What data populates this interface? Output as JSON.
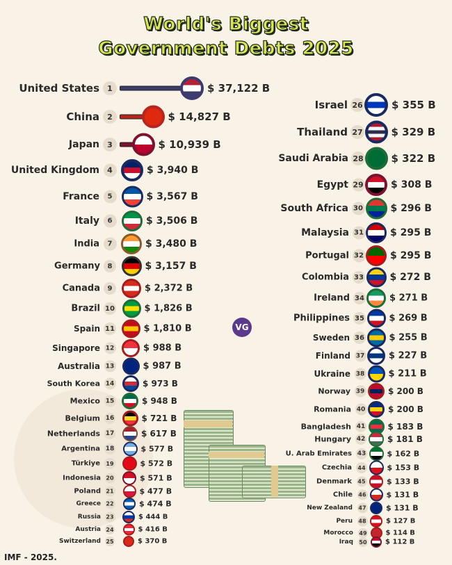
{
  "title_line1": "World's Biggest",
  "title_line2": "Government Debts 2025",
  "source": "IMF - 2025.",
  "logo": "VG",
  "chart_data": {
    "type": "ranked-list",
    "title": "World's Biggest Government Debts 2025",
    "unit": "$ B",
    "items": [
      {
        "rank": 1,
        "country": "United States",
        "value": 37122,
        "label": "$ 37,122 B",
        "colors": [
          "#b22234",
          "#ffffff",
          "#3c3b6e"
        ],
        "ring": "#3c3b6e"
      },
      {
        "rank": 2,
        "country": "China",
        "value": 14827,
        "label": "$ 14,827 B",
        "colors": [
          "#de2910",
          "#de2910"
        ],
        "ring": "#b5261c"
      },
      {
        "rank": 3,
        "country": "Japan",
        "value": 10939,
        "label": "$ 10,939 B",
        "colors": [
          "#ffffff",
          "#bc002d"
        ],
        "ring": "#7a1230"
      },
      {
        "rank": 4,
        "country": "United Kingdom",
        "value": 3940,
        "label": "$ 3,940 B",
        "colors": [
          "#012169",
          "#c8102e",
          "#ffffff"
        ],
        "ring": "#1b2a5e"
      },
      {
        "rank": 5,
        "country": "France",
        "value": 3567,
        "label": "$ 3,567 B",
        "colors": [
          "#0055a4",
          "#ffffff",
          "#ef4135"
        ],
        "ring": "#1b2a5e"
      },
      {
        "rank": 6,
        "country": "Italy",
        "value": 3506,
        "label": "$ 3,506 B",
        "colors": [
          "#009246",
          "#ffffff",
          "#ce2b37"
        ],
        "ring": "#1f6b3a"
      },
      {
        "rank": 7,
        "country": "India",
        "value": 3480,
        "label": "$ 3,480 B",
        "colors": [
          "#ff9933",
          "#ffffff",
          "#138808"
        ],
        "ring": "#8a5a2a"
      },
      {
        "rank": 8,
        "country": "Germany",
        "value": 3157,
        "label": "$ 3,157 B",
        "colors": [
          "#000000",
          "#dd0000",
          "#ffce00"
        ],
        "ring": "#333333"
      },
      {
        "rank": 9,
        "country": "Canada",
        "value": 2372,
        "label": "$ 2,372 B",
        "colors": [
          "#d52b1e",
          "#ffffff",
          "#d52b1e"
        ],
        "ring": "#a21e1e"
      },
      {
        "rank": 10,
        "country": "Brazil",
        "value": 1826,
        "label": "$ 1,826 B",
        "colors": [
          "#009c3b",
          "#ffdf00",
          "#009c3b"
        ],
        "ring": "#1f6b3a"
      },
      {
        "rank": 11,
        "country": "Spain",
        "value": 1810,
        "label": "$ 1,810 B",
        "colors": [
          "#c60b1e",
          "#ffc400",
          "#c60b1e"
        ],
        "ring": "#a21e1e"
      },
      {
        "rank": 12,
        "country": "Singapore",
        "value": 988,
        "label": "$ 988 B",
        "colors": [
          "#ef3340",
          "#ffffff"
        ],
        "ring": "#a21e1e"
      },
      {
        "rank": 13,
        "country": "Australia",
        "value": 987,
        "label": "$ 987 B",
        "colors": [
          "#00247d",
          "#00247d"
        ],
        "ring": "#1b2a5e"
      },
      {
        "rank": 14,
        "country": "South Korea",
        "value": 973,
        "label": "$ 973 B",
        "colors": [
          "#ffffff",
          "#cd2e3a",
          "#0047a0"
        ],
        "ring": "#1b2a5e"
      },
      {
        "rank": 15,
        "country": "Mexico",
        "value": 948,
        "label": "$ 948 B",
        "colors": [
          "#006847",
          "#ffffff",
          "#ce1126"
        ],
        "ring": "#1f6b3a"
      },
      {
        "rank": 16,
        "country": "Belgium",
        "value": 721,
        "label": "$ 721 B",
        "colors": [
          "#000000",
          "#fdda24",
          "#ef3340"
        ],
        "ring": "#a21e1e"
      },
      {
        "rank": 17,
        "country": "Netherlands",
        "value": 617,
        "label": "$ 617 B",
        "colors": [
          "#ae1c28",
          "#ffffff",
          "#21468b"
        ],
        "ring": "#7a4a3a"
      },
      {
        "rank": 18,
        "country": "Argentina",
        "value": 577,
        "label": "$ 577 B",
        "colors": [
          "#74acdf",
          "#ffffff",
          "#74acdf"
        ],
        "ring": "#1b2a5e"
      },
      {
        "rank": 19,
        "country": "Türkiye",
        "value": 572,
        "label": "$ 572 B",
        "colors": [
          "#e30a17",
          "#e30a17"
        ],
        "ring": "#a21e1e"
      },
      {
        "rank": 20,
        "country": "Indonesia",
        "value": 571,
        "label": "$ 571 B",
        "colors": [
          "#ce1126",
          "#ffffff"
        ],
        "ring": "#7a1230"
      },
      {
        "rank": 21,
        "country": "Poland",
        "value": 477,
        "label": "$ 477 B",
        "colors": [
          "#ffffff",
          "#dc143c"
        ],
        "ring": "#a21e1e"
      },
      {
        "rank": 22,
        "country": "Greece",
        "value": 474,
        "label": "$ 474 B",
        "colors": [
          "#0d5eaf",
          "#ffffff",
          "#0d5eaf"
        ],
        "ring": "#1b2a5e"
      },
      {
        "rank": 23,
        "country": "Russia",
        "value": 444,
        "label": "$ 444 B",
        "colors": [
          "#ffffff",
          "#0039a6",
          "#d52b1e"
        ],
        "ring": "#1b2a5e"
      },
      {
        "rank": 24,
        "country": "Austria",
        "value": 416,
        "label": "$ 416 B",
        "colors": [
          "#ed2939",
          "#ffffff",
          "#ed2939"
        ],
        "ring": "#a21e1e"
      },
      {
        "rank": 25,
        "country": "Switzerland",
        "value": 370,
        "label": "$ 370 B",
        "colors": [
          "#da291c",
          "#da291c"
        ],
        "ring": "#a21e1e"
      },
      {
        "rank": 26,
        "country": "Israel",
        "value": 355,
        "label": "$ 355 B",
        "colors": [
          "#ffffff",
          "#0038b8",
          "#ffffff"
        ],
        "ring": "#1b2a5e"
      },
      {
        "rank": 27,
        "country": "Thailand",
        "value": 329,
        "label": "$ 329 B",
        "colors": [
          "#a51931",
          "#f4f5f8",
          "#2d2a4a",
          "#f4f5f8",
          "#a51931"
        ],
        "ring": "#1b2a5e"
      },
      {
        "rank": 28,
        "country": "Saudi Arabia",
        "value": 322,
        "label": "$ 322 B",
        "colors": [
          "#006c35",
          "#006c35"
        ],
        "ring": "#1f6b3a"
      },
      {
        "rank": 29,
        "country": "Egypt",
        "value": 308,
        "label": "$ 308 B",
        "colors": [
          "#ce1126",
          "#ffffff",
          "#000000"
        ],
        "ring": "#7a1230"
      },
      {
        "rank": 30,
        "country": "South Africa",
        "value": 296,
        "label": "$ 296 B",
        "colors": [
          "#de3831",
          "#007a4d",
          "#002395"
        ],
        "ring": "#1f6b3a"
      },
      {
        "rank": 31,
        "country": "Malaysia",
        "value": 295,
        "label": "$ 295 B",
        "colors": [
          "#cc0001",
          "#ffffff",
          "#010066"
        ],
        "ring": "#1b2a5e"
      },
      {
        "rank": 32,
        "country": "Portugal",
        "value": 295,
        "label": "$ 295 B",
        "colors": [
          "#006600",
          "#ff0000"
        ],
        "ring": "#a21e1e"
      },
      {
        "rank": 33,
        "country": "Colombia",
        "value": 272,
        "label": "$ 272 B",
        "colors": [
          "#fcd116",
          "#003893",
          "#ce1126"
        ],
        "ring": "#1b2a5e"
      },
      {
        "rank": 34,
        "country": "Ireland",
        "value": 271,
        "label": "$ 271 B",
        "colors": [
          "#169b62",
          "#ffffff",
          "#ff883e"
        ],
        "ring": "#1f6b3a"
      },
      {
        "rank": 35,
        "country": "Philippines",
        "value": 269,
        "label": "$ 269 B",
        "colors": [
          "#0038a8",
          "#ffffff",
          "#ce1126"
        ],
        "ring": "#1b2a5e"
      },
      {
        "rank": 36,
        "country": "Sweden",
        "value": 255,
        "label": "$ 255 B",
        "colors": [
          "#006aa7",
          "#fecc00",
          "#006aa7"
        ],
        "ring": "#1b2a5e"
      },
      {
        "rank": 37,
        "country": "Finland",
        "value": 227,
        "label": "$ 227 B",
        "colors": [
          "#ffffff",
          "#003580",
          "#ffffff"
        ],
        "ring": "#1b2a5e"
      },
      {
        "rank": 38,
        "country": "Ukraine",
        "value": 211,
        "label": "$ 211 B",
        "colors": [
          "#0057b7",
          "#ffd700"
        ],
        "ring": "#1b2a5e"
      },
      {
        "rank": 39,
        "country": "Norway",
        "value": 200,
        "label": "$ 200 B",
        "colors": [
          "#ba0c2f",
          "#00205b",
          "#ba0c2f"
        ],
        "ring": "#a21e1e"
      },
      {
        "rank": 40,
        "country": "Romania",
        "value": 200,
        "label": "$ 200 B",
        "colors": [
          "#002b7f",
          "#fcd116",
          "#ce1126"
        ],
        "ring": "#1b2a5e"
      },
      {
        "rank": 41,
        "country": "Bangladesh",
        "value": 183,
        "label": "$ 183 B",
        "colors": [
          "#006a4e",
          "#f42a41",
          "#006a4e"
        ],
        "ring": "#1f6b3a"
      },
      {
        "rank": 42,
        "country": "Hungary",
        "value": 181,
        "label": "$ 181 B",
        "colors": [
          "#cd2a3e",
          "#ffffff",
          "#436f4d"
        ],
        "ring": "#1f6b3a"
      },
      {
        "rank": 43,
        "country": "U. Arab Emirates",
        "value": 162,
        "label": "$ 162 B",
        "colors": [
          "#00732f",
          "#ffffff",
          "#000000"
        ],
        "ring": "#1f6b3a"
      },
      {
        "rank": 44,
        "country": "Czechia",
        "value": 153,
        "label": "$ 153 B",
        "colors": [
          "#ffffff",
          "#d7141a"
        ],
        "ring": "#1b2a5e"
      },
      {
        "rank": 45,
        "country": "Denmark",
        "value": 133,
        "label": "$ 133 B",
        "colors": [
          "#c8102e",
          "#ffffff",
          "#c8102e"
        ],
        "ring": "#a21e1e"
      },
      {
        "rank": 46,
        "country": "Chile",
        "value": 131,
        "label": "$ 131 B",
        "colors": [
          "#ffffff",
          "#d52b1e"
        ],
        "ring": "#1b2a5e"
      },
      {
        "rank": 47,
        "country": "New Zealand",
        "value": 131,
        "label": "$ 131 B",
        "colors": [
          "#00247d",
          "#00247d"
        ],
        "ring": "#1b2a5e"
      },
      {
        "rank": 48,
        "country": "Peru",
        "value": 127,
        "label": "$ 127 B",
        "colors": [
          "#d91023",
          "#ffffff",
          "#d91023"
        ],
        "ring": "#a21e1e"
      },
      {
        "rank": 49,
        "country": "Morocco",
        "value": 114,
        "label": "$ 114 B",
        "colors": [
          "#c1272d",
          "#c1272d"
        ],
        "ring": "#a21e1e"
      },
      {
        "rank": 50,
        "country": "Iraq",
        "value": 112,
        "label": "$ 112 B",
        "colors": [
          "#ce1126",
          "#ffffff",
          "#000000"
        ],
        "ring": "#7a1230"
      }
    ]
  }
}
